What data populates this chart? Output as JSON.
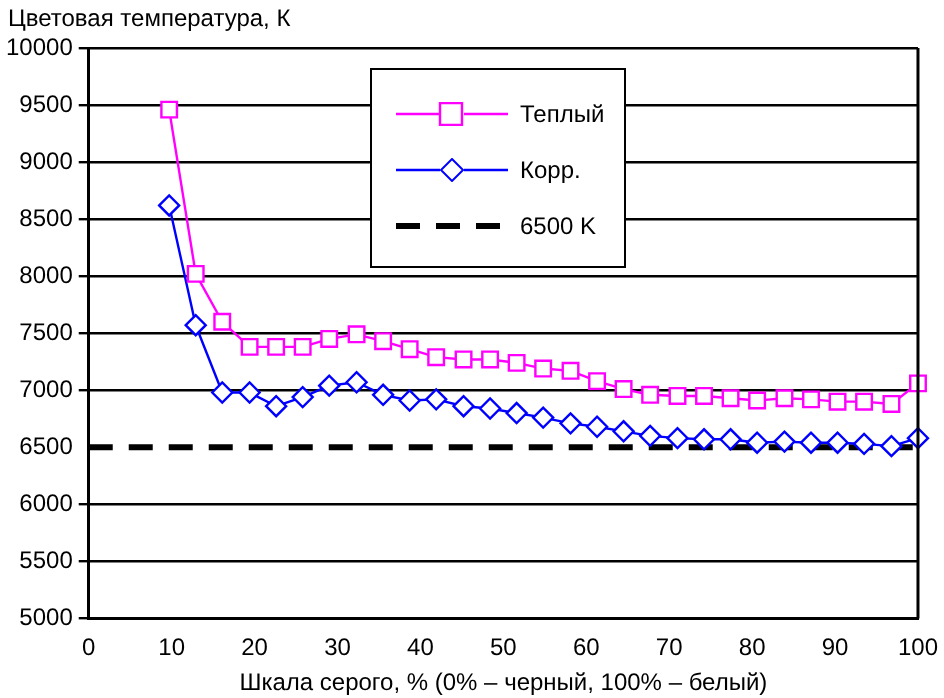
{
  "chart_data": {
    "type": "line",
    "ylabel": "Цветовая температура, К",
    "xlabel": "Шкала серого, % (0% – черный, 100% – белый)",
    "x": [
      9.7,
      12.9,
      16.1,
      19.4,
      22.6,
      25.8,
      29.0,
      32.3,
      35.5,
      38.7,
      41.9,
      45.2,
      48.4,
      51.6,
      54.8,
      58.1,
      61.3,
      64.5,
      67.7,
      71.0,
      74.2,
      77.4,
      80.6,
      83.9,
      87.1,
      90.3,
      93.5,
      96.8,
      100
    ],
    "series": [
      {
        "name": "Теплый",
        "color": "#ff00ff",
        "marker": "square",
        "values": [
          9460,
          8020,
          7600,
          7380,
          7380,
          7380,
          7450,
          7490,
          7430,
          7360,
          7290,
          7270,
          7270,
          7240,
          7190,
          7170,
          7080,
          7010,
          6960,
          6950,
          6950,
          6930,
          6910,
          6930,
          6920,
          6900,
          6900,
          6880,
          7060
        ]
      },
      {
        "name": "Корр.",
        "color": "#0000ff",
        "marker": "diamond",
        "values": [
          8620,
          7570,
          6980,
          6980,
          6860,
          6940,
          7040,
          7070,
          6960,
          6910,
          6920,
          6860,
          6840,
          6800,
          6760,
          6710,
          6680,
          6640,
          6600,
          6580,
          6570,
          6570,
          6540,
          6550,
          6540,
          6540,
          6530,
          6510,
          6580
        ]
      },
      {
        "name": "6500 K",
        "color": "#000000",
        "marker": "none",
        "line_style": "dashed",
        "x": [
          0,
          100
        ],
        "values": [
          6500,
          6500
        ]
      }
    ],
    "xlim": [
      0,
      100
    ],
    "xticks": [
      0,
      10,
      20,
      30,
      40,
      50,
      60,
      70,
      80,
      90,
      100
    ],
    "ylim": [
      5000,
      10000
    ],
    "yticks": [
      5000,
      5500,
      6000,
      6500,
      7000,
      7500,
      8000,
      8500,
      9000,
      9500,
      10000
    ],
    "grid": "y",
    "legend": "top right"
  }
}
